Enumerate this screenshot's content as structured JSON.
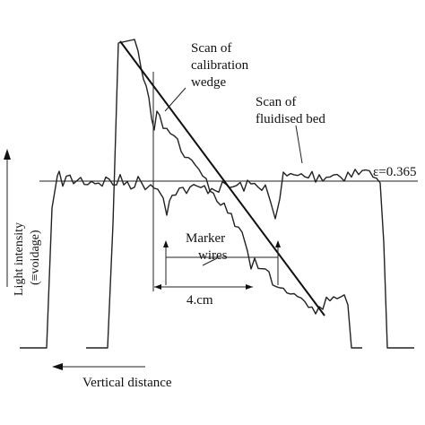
{
  "chart_data": {
    "type": "line",
    "xlabel": "Vertical distance",
    "ylabel_line1": "Light intensity",
    "ylabel_line2": "(≡voidage)",
    "annotations": {
      "calibration_scan": [
        "Scan of",
        "calibration",
        "wedge"
      ],
      "bed_scan": [
        "Scan of",
        "fluidised bed"
      ],
      "voidage_value": "ε=0.365",
      "marker_wires": [
        "Marker",
        "wires"
      ],
      "scale_length": "4.cm"
    },
    "grid": false,
    "legend": "none"
  }
}
